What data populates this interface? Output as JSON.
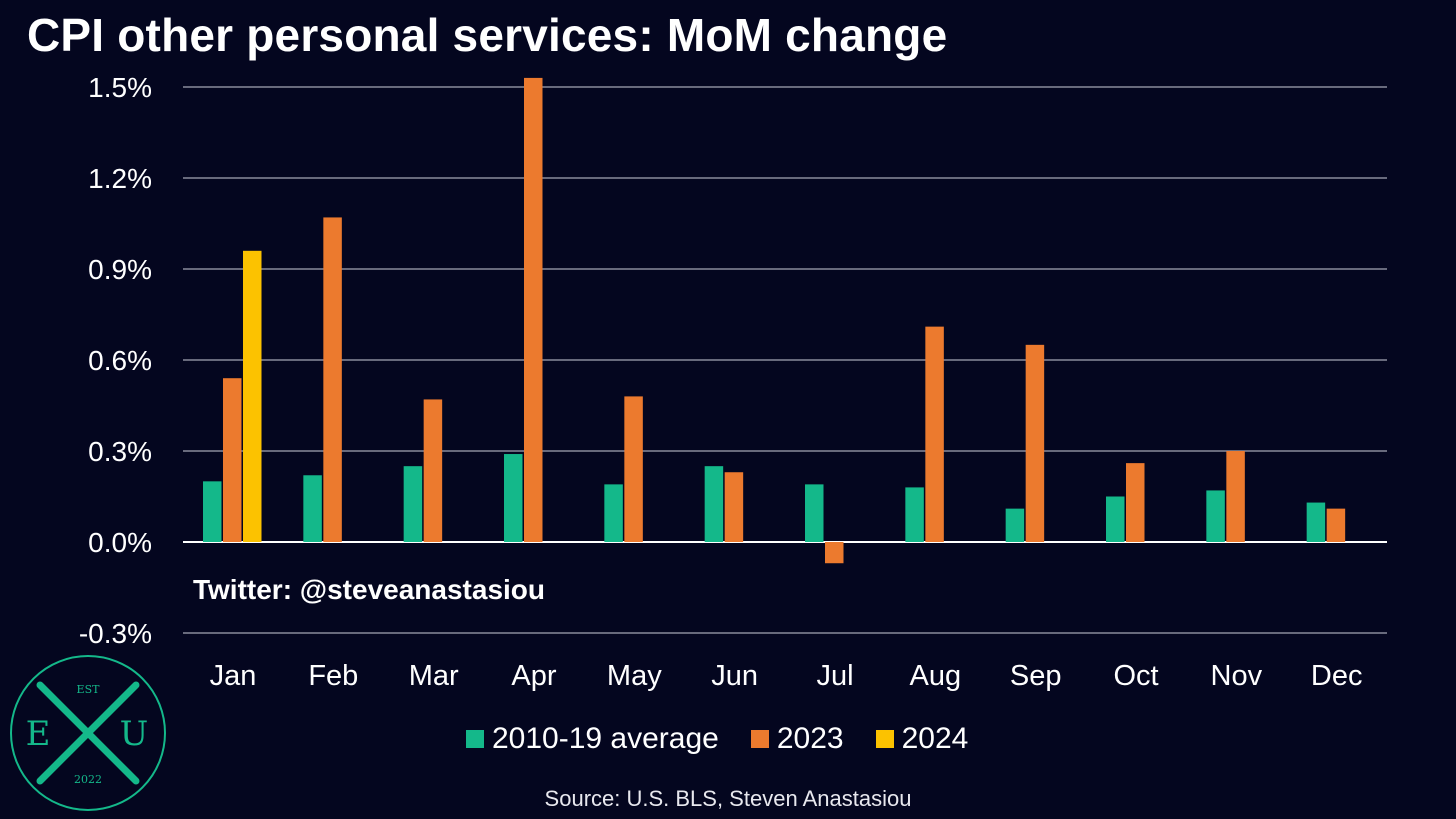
{
  "title": "CPI other personal services: MoM change",
  "watermark": "Twitter: @steveanastasiou",
  "source": "Source: U.S. BLS, Steven Anastasiou",
  "logo": {
    "top": "EST",
    "left": "E",
    "right": "U",
    "bottom": "2022",
    "color": "#14b88a"
  },
  "colors": {
    "background": "#04061f",
    "avg": "#14b88a",
    "y2023": "#ec7a2e",
    "y2024": "#fcc200"
  },
  "chart_data": {
    "type": "bar",
    "categories": [
      "Jan",
      "Feb",
      "Mar",
      "Apr",
      "May",
      "Jun",
      "Jul",
      "Aug",
      "Sep",
      "Oct",
      "Nov",
      "Dec"
    ],
    "series": [
      {
        "name": "2010-19 average",
        "color": "#14b88a",
        "values": [
          0.2,
          0.22,
          0.25,
          0.29,
          0.19,
          0.25,
          0.19,
          0.18,
          0.11,
          0.15,
          0.17,
          0.13
        ]
      },
      {
        "name": "2023",
        "color": "#ec7a2e",
        "values": [
          0.54,
          1.07,
          0.47,
          1.53,
          0.48,
          0.23,
          -0.07,
          0.71,
          0.65,
          0.26,
          0.3,
          0.11
        ]
      },
      {
        "name": "2024",
        "color": "#fcc200",
        "values": [
          0.96,
          null,
          null,
          null,
          null,
          null,
          null,
          null,
          null,
          null,
          null,
          null
        ]
      }
    ],
    "ylim": [
      -0.3,
      1.5
    ],
    "yticks": [
      1.5,
      1.2,
      0.9,
      0.6,
      0.3,
      0.0,
      -0.3
    ],
    "ytick_labels": [
      "1.5%",
      "1.2%",
      "0.9%",
      "0.6%",
      "0.3%",
      "0.0%",
      "-0.3%"
    ],
    "grid": true,
    "legend_position": "bottom"
  }
}
